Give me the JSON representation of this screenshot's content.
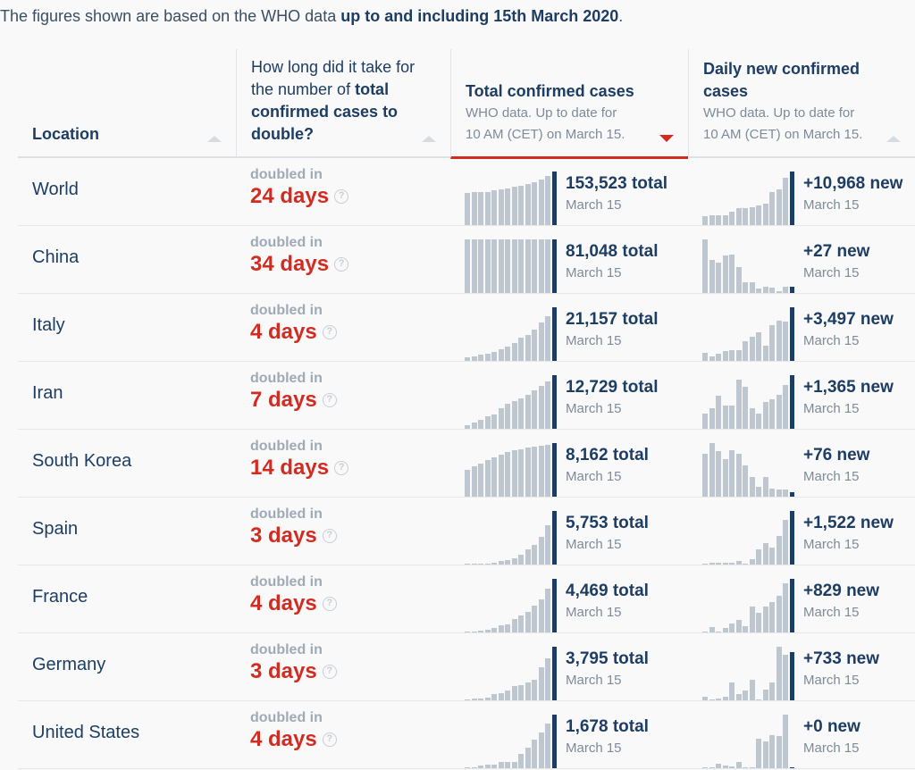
{
  "intro": {
    "prefix": "The figures shown are based on the WHO data ",
    "bold": "up to and including 15th March 2020",
    "suffix": "."
  },
  "headers": {
    "location": "Location",
    "doubling": {
      "pre": "How long did it take for the number of ",
      "bold": "total confirmed cases to",
      "bold2": "double?"
    },
    "total": {
      "title": "Total confirmed cases",
      "sub1": "WHO data. Up to date for",
      "sub2": "10 AM (CET) on March 15."
    },
    "daily": {
      "title": "Daily new confirmed cases",
      "sub1": "WHO data. Up to date for",
      "sub2": "10 AM (CET) on March 15."
    }
  },
  "colors": {
    "navy": "#1d3d63",
    "red": "#d42b21",
    "bar": "#bec6cf"
  },
  "rows": [
    {
      "location": "World",
      "doubled_label": "doubled in",
      "days": "24 days",
      "total": "153,523 total",
      "total_date": "March 15",
      "new": "+10,968 new",
      "new_date": "March 15",
      "total_spark": [
        0.6,
        0.61,
        0.62,
        0.62,
        0.65,
        0.67,
        0.69,
        0.71,
        0.73,
        0.76,
        0.8,
        0.85,
        0.92,
        1
      ],
      "new_spark": [
        0.16,
        0.18,
        0.19,
        0.19,
        0.25,
        0.31,
        0.31,
        0.34,
        0.36,
        0.4,
        0.62,
        0.67,
        0.88,
        1
      ]
    },
    {
      "location": "China",
      "doubled_label": "doubled in",
      "days": "34 days",
      "total": "81,048 total",
      "total_date": "March 15",
      "new": "+27 new",
      "new_date": "March 15",
      "total_spark": [
        1,
        1,
        1,
        1,
        1,
        1,
        1,
        1,
        1,
        1,
        1,
        1,
        1,
        1
      ],
      "new_spark": [
        1,
        0.62,
        0.57,
        0.7,
        0.72,
        0.48,
        0.2,
        0.2,
        0.08,
        0.12,
        0.1,
        0.04,
        0.12,
        0.11
      ]
    },
    {
      "location": "Italy",
      "doubled_label": "doubled in",
      "days": "4 days",
      "total": "21,157 total",
      "total_date": "March 15",
      "new": "+3,497 new",
      "new_date": "March 15",
      "total_spark": [
        0.07,
        0.08,
        0.11,
        0.14,
        0.17,
        0.21,
        0.27,
        0.34,
        0.43,
        0.49,
        0.59,
        0.71,
        0.83,
        1
      ],
      "new_spark": [
        0.15,
        0.09,
        0.13,
        0.18,
        0.2,
        0.2,
        0.37,
        0.45,
        0.53,
        0.29,
        0.67,
        0.75,
        0.73,
        1
      ]
    },
    {
      "location": "Iran",
      "doubled_label": "doubled in",
      "days": "7 days",
      "total": "12,729 total",
      "total_date": "March 15",
      "new": "+1,365 new",
      "new_date": "March 15",
      "total_spark": [
        0.07,
        0.11,
        0.17,
        0.23,
        0.27,
        0.38,
        0.46,
        0.51,
        0.56,
        0.63,
        0.71,
        0.8,
        0.88,
        1
      ],
      "new_spark": [
        0.29,
        0.38,
        0.62,
        0.43,
        0.43,
        0.91,
        0.79,
        0.39,
        0.28,
        0.5,
        0.55,
        0.64,
        0.81,
        1
      ]
    },
    {
      "location": "South Korea",
      "doubled_label": "doubled in",
      "days": "14 days",
      "total": "8,162 total",
      "total_date": "March 15",
      "new": "+76 new",
      "new_date": "March 15",
      "total_spark": [
        0.5,
        0.56,
        0.62,
        0.68,
        0.74,
        0.79,
        0.84,
        0.87,
        0.88,
        0.91,
        0.93,
        0.95,
        0.97,
        1
      ],
      "new_spark": [
        0.8,
        1,
        0.85,
        0.7,
        0.86,
        0.8,
        0.58,
        0.36,
        0.18,
        0.36,
        0.15,
        0.13,
        0.13,
        0.08
      ]
    },
    {
      "location": "Spain",
      "doubled_label": "doubled in",
      "days": "3 days",
      "total": "5,753 total",
      "total_date": "March 15",
      "new": "+1,522 new",
      "new_date": "March 15",
      "total_spark": [
        0.01,
        0.02,
        0.02,
        0.02,
        0.04,
        0.06,
        0.08,
        0.11,
        0.18,
        0.28,
        0.36,
        0.51,
        0.73,
        1
      ],
      "new_spark": [
        0,
        0.03,
        0.03,
        0.03,
        0.04,
        0.07,
        0.02,
        0.1,
        0.28,
        0.4,
        0.32,
        0.53,
        0.83,
        1
      ]
    },
    {
      "location": "France",
      "doubled_label": "doubled in",
      "days": "4 days",
      "total": "4,469 total",
      "total_date": "March 15",
      "new": "+829 new",
      "new_date": "March 15",
      "total_spark": [
        0.01,
        0.02,
        0.03,
        0.05,
        0.09,
        0.13,
        0.15,
        0.25,
        0.31,
        0.38,
        0.5,
        0.62,
        0.81,
        1
      ],
      "new_spark": [
        0.01,
        0.1,
        0.01,
        0.08,
        0.17,
        0.23,
        0.11,
        0.48,
        0.37,
        0.48,
        0.57,
        0.68,
        0.92,
        1
      ]
    },
    {
      "location": "Germany",
      "doubled_label": "doubled in",
      "days": "3 days",
      "total": "3,795 total",
      "total_date": "March 15",
      "new": "+733 new",
      "new_date": "March 15",
      "total_spark": [
        0.02,
        0.03,
        0.04,
        0.05,
        0.12,
        0.14,
        0.18,
        0.27,
        0.28,
        0.33,
        0.39,
        0.61,
        0.78,
        1
      ],
      "new_spark": [
        0.06,
        0.02,
        0.03,
        0.07,
        0.33,
        0.12,
        0.18,
        0.38,
        0.01,
        0.2,
        0.33,
        1,
        0.85,
        0.9
      ]
    },
    {
      "location": "United States",
      "doubled_label": "doubled in",
      "days": "4 days",
      "total": "1,678 total",
      "total_date": "March 15",
      "new": "+0 new",
      "new_date": "March 15",
      "total_spark": [
        0.02,
        0.02,
        0.05,
        0.06,
        0.07,
        0.11,
        0.11,
        0.11,
        0.27,
        0.39,
        0.53,
        0.66,
        0.83,
        1
      ],
      "new_spark": [
        0.02,
        0.02,
        0.09,
        0.05,
        0.03,
        0.12,
        0.02,
        0.02,
        0.55,
        0.5,
        0.62,
        0.6,
        1,
        0.02
      ]
    }
  ]
}
